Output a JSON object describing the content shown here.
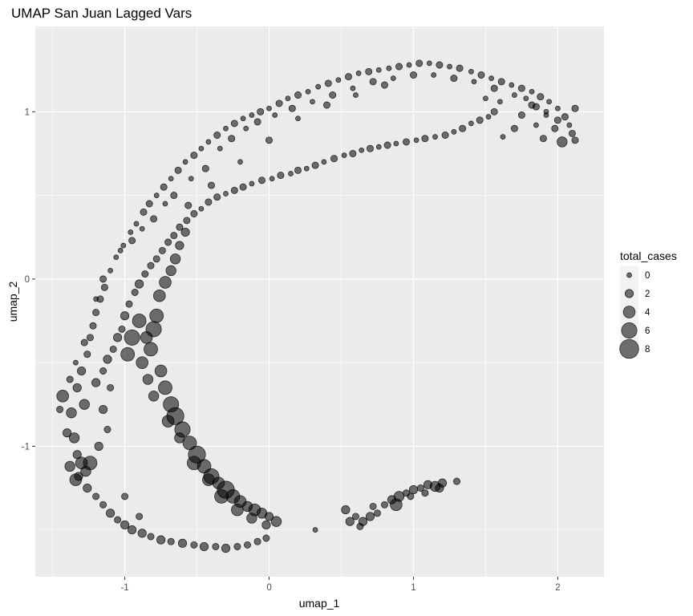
{
  "chart_data": {
    "type": "scatter",
    "title": "UMAP San Juan Lagged Vars",
    "xlabel": "umap_1",
    "ylabel": "umap_2",
    "xlim": [
      -1.62,
      2.32
    ],
    "ylim": [
      -1.78,
      1.51
    ],
    "x_ticks": [
      -1,
      0,
      1,
      2
    ],
    "y_ticks": [
      -1,
      0,
      1
    ],
    "x_tick_labels": [
      "-1",
      "0",
      "1",
      "2"
    ],
    "y_tick_labels": [
      "-1",
      "0",
      "1"
    ],
    "grid": true,
    "point_color": "#000000",
    "point_alpha": 0.55,
    "panel_color": "#ebebeb",
    "legend": {
      "title": "total_cases",
      "position": "right",
      "entries": [
        {
          "label": "0",
          "value": 0
        },
        {
          "label": "2",
          "value": 2
        },
        {
          "label": "4",
          "value": 4
        },
        {
          "label": "6",
          "value": 6
        },
        {
          "label": "8",
          "value": 8
        }
      ]
    },
    "points": [
      [
        -1.4,
        -0.92,
        2
      ],
      [
        -1.43,
        -0.7,
        4
      ],
      [
        -1.37,
        -0.8,
        3
      ],
      [
        -1.35,
        -0.95,
        3
      ],
      [
        -1.33,
        -1.05,
        2
      ],
      [
        -1.3,
        -1.1,
        4
      ],
      [
        -1.27,
        -1.15,
        3
      ],
      [
        -1.33,
        -0.65,
        2
      ],
      [
        -1.28,
        -0.75,
        3
      ],
      [
        -1.3,
        -0.55,
        2
      ],
      [
        -1.26,
        -0.45,
        1
      ],
      [
        -1.24,
        -0.35,
        1
      ],
      [
        -1.22,
        -0.28,
        1
      ],
      [
        -1.2,
        -0.2,
        1
      ],
      [
        -1.17,
        -0.12,
        1
      ],
      [
        -1.14,
        -0.05,
        1
      ],
      [
        -1.1,
        0.05,
        0
      ],
      [
        -1.06,
        0.13,
        0
      ],
      [
        -1.01,
        0.2,
        0
      ],
      [
        -0.96,
        0.28,
        0
      ],
      [
        -0.92,
        0.33,
        0
      ],
      [
        -0.87,
        0.4,
        1
      ],
      [
        -0.83,
        0.45,
        1
      ],
      [
        -0.78,
        0.5,
        0
      ],
      [
        -0.73,
        0.55,
        1
      ],
      [
        -0.68,
        0.6,
        0
      ],
      [
        -0.63,
        0.65,
        1
      ],
      [
        -0.58,
        0.7,
        0
      ],
      [
        -0.52,
        0.74,
        1
      ],
      [
        -0.47,
        0.78,
        0
      ],
      [
        -0.42,
        0.82,
        0
      ],
      [
        -0.36,
        0.86,
        1
      ],
      [
        -0.3,
        0.9,
        0
      ],
      [
        -0.24,
        0.93,
        1
      ],
      [
        -0.18,
        0.96,
        0
      ],
      [
        -0.12,
        0.98,
        0
      ],
      [
        -0.06,
        1.0,
        1
      ],
      [
        0.0,
        1.02,
        0
      ],
      [
        0.07,
        1.05,
        1
      ],
      [
        0.13,
        1.08,
        0
      ],
      [
        0.2,
        1.1,
        1
      ],
      [
        0.27,
        1.12,
        0
      ],
      [
        0.34,
        1.15,
        0
      ],
      [
        0.41,
        1.17,
        1
      ],
      [
        0.48,
        1.19,
        0
      ],
      [
        0.55,
        1.21,
        1
      ],
      [
        0.62,
        1.23,
        0
      ],
      [
        0.69,
        1.24,
        1
      ],
      [
        0.76,
        1.25,
        0
      ],
      [
        0.83,
        1.26,
        0
      ],
      [
        0.9,
        1.27,
        1
      ],
      [
        0.97,
        1.28,
        0
      ],
      [
        1.04,
        1.29,
        1
      ],
      [
        1.11,
        1.29,
        0
      ],
      [
        1.18,
        1.28,
        1
      ],
      [
        1.25,
        1.27,
        0
      ],
      [
        1.32,
        1.26,
        1
      ],
      [
        1.4,
        1.24,
        0
      ],
      [
        1.47,
        1.22,
        1
      ],
      [
        1.54,
        1.2,
        0
      ],
      [
        1.61,
        1.18,
        1
      ],
      [
        1.68,
        1.16,
        0
      ],
      [
        1.75,
        1.14,
        1
      ],
      [
        1.82,
        1.12,
        0
      ],
      [
        1.88,
        1.09,
        1
      ],
      [
        1.94,
        1.06,
        0
      ],
      [
        2.0,
        1.02,
        0
      ],
      [
        2.05,
        0.97,
        1
      ],
      [
        2.08,
        0.92,
        0
      ],
      [
        2.1,
        0.87,
        1
      ],
      [
        2.03,
        0.82,
        3
      ],
      [
        1.98,
        0.9,
        1
      ],
      [
        1.92,
        0.98,
        0
      ],
      [
        1.85,
        1.03,
        1
      ],
      [
        1.78,
        1.08,
        0
      ],
      [
        2.12,
        1.02,
        1
      ],
      [
        2.12,
        0.83,
        1
      ],
      [
        -1.2,
        -0.62,
        2
      ],
      [
        -1.15,
        -0.55,
        1
      ],
      [
        -1.12,
        -0.48,
        2
      ],
      [
        -1.08,
        -0.42,
        1
      ],
      [
        -1.05,
        -0.35,
        2
      ],
      [
        -1.02,
        -0.3,
        1
      ],
      [
        -1.0,
        -0.22,
        2
      ],
      [
        -0.97,
        -0.15,
        1
      ],
      [
        -0.93,
        -0.08,
        1
      ],
      [
        -0.9,
        -0.03,
        2
      ],
      [
        -0.86,
        0.03,
        1
      ],
      [
        -0.82,
        0.08,
        1
      ],
      [
        -0.78,
        0.12,
        1
      ],
      [
        -0.74,
        0.17,
        1
      ],
      [
        -0.7,
        0.22,
        1
      ],
      [
        -0.66,
        0.26,
        1
      ],
      [
        -0.62,
        0.31,
        1
      ],
      [
        -0.57,
        0.35,
        1
      ],
      [
        -0.52,
        0.39,
        1
      ],
      [
        -0.47,
        0.42,
        0
      ],
      [
        -0.42,
        0.46,
        1
      ],
      [
        -0.36,
        0.49,
        1
      ],
      [
        -0.3,
        0.51,
        0
      ],
      [
        -0.24,
        0.53,
        1
      ],
      [
        -0.18,
        0.55,
        1
      ],
      [
        -0.12,
        0.57,
        0
      ],
      [
        -0.05,
        0.59,
        1
      ],
      [
        0.02,
        0.6,
        0
      ],
      [
        0.08,
        0.62,
        1
      ],
      [
        0.15,
        0.63,
        0
      ],
      [
        0.2,
        0.65,
        1
      ],
      [
        0.26,
        0.66,
        0
      ],
      [
        0.32,
        0.68,
        1
      ],
      [
        0.38,
        0.7,
        0
      ],
      [
        0.45,
        0.72,
        1
      ],
      [
        0.52,
        0.74,
        0
      ],
      [
        0.58,
        0.75,
        1
      ],
      [
        0.64,
        0.77,
        0
      ],
      [
        0.7,
        0.78,
        1
      ],
      [
        0.76,
        0.79,
        0
      ],
      [
        0.82,
        0.8,
        1
      ],
      [
        0.88,
        0.81,
        0
      ],
      [
        0.95,
        0.82,
        1
      ],
      [
        1.02,
        0.83,
        0
      ],
      [
        1.08,
        0.84,
        1
      ],
      [
        1.15,
        0.85,
        0
      ],
      [
        1.22,
        0.86,
        1
      ],
      [
        1.28,
        0.88,
        0
      ],
      [
        1.34,
        0.9,
        1
      ],
      [
        1.4,
        0.93,
        0
      ],
      [
        1.46,
        0.95,
        1
      ],
      [
        1.52,
        0.97,
        0
      ],
      [
        1.56,
        1.0,
        1
      ],
      [
        1.5,
        1.08,
        0
      ],
      [
        -0.75,
        -0.55,
        4
      ],
      [
        -0.72,
        -0.65,
        5
      ],
      [
        -0.68,
        -0.75,
        6
      ],
      [
        -0.65,
        -0.82,
        7
      ],
      [
        -0.6,
        -0.9,
        6
      ],
      [
        -0.55,
        -0.98,
        5
      ],
      [
        -0.5,
        -1.05,
        7
      ],
      [
        -0.45,
        -1.12,
        5
      ],
      [
        -0.4,
        -1.18,
        6
      ],
      [
        -0.35,
        -1.22,
        4
      ],
      [
        -0.3,
        -1.26,
        7
      ],
      [
        -0.25,
        -1.3,
        5
      ],
      [
        -0.2,
        -1.33,
        4
      ],
      [
        -0.15,
        -1.36,
        3
      ],
      [
        -0.1,
        -1.38,
        4
      ],
      [
        -0.05,
        -1.4,
        3
      ],
      [
        0.0,
        -1.42,
        2
      ],
      [
        0.05,
        -1.45,
        3
      ],
      [
        -0.85,
        -0.35,
        4
      ],
      [
        -0.82,
        -0.42,
        5
      ],
      [
        -0.8,
        -0.3,
        6
      ],
      [
        -0.78,
        -0.22,
        5
      ],
      [
        -0.76,
        -0.1,
        4
      ],
      [
        -0.72,
        -0.02,
        4
      ],
      [
        -0.68,
        0.05,
        3
      ],
      [
        -0.65,
        0.12,
        3
      ],
      [
        -0.62,
        0.2,
        2
      ],
      [
        -0.58,
        0.28,
        2
      ],
      [
        -0.9,
        -0.25,
        5
      ],
      [
        -0.95,
        -0.35,
        6
      ],
      [
        -0.98,
        -0.45,
        5
      ],
      [
        -0.88,
        -0.5,
        4
      ],
      [
        -0.84,
        -0.6,
        3
      ],
      [
        -0.8,
        -0.7,
        3
      ],
      [
        -0.7,
        -0.85,
        4
      ],
      [
        -0.62,
        -0.95,
        3
      ],
      [
        -0.52,
        -1.1,
        5
      ],
      [
        -0.42,
        -1.2,
        4
      ],
      [
        -0.33,
        -1.3,
        5
      ],
      [
        -0.22,
        -1.38,
        4
      ],
      [
        -0.12,
        -1.43,
        3
      ],
      [
        -0.02,
        -1.47,
        2
      ],
      [
        -1.38,
        -1.12,
        3
      ],
      [
        -1.32,
        -1.18,
        2
      ],
      [
        -1.26,
        -1.25,
        2
      ],
      [
        -1.2,
        -1.3,
        1
      ],
      [
        -1.15,
        -1.35,
        1
      ],
      [
        -1.1,
        -1.4,
        2
      ],
      [
        -1.05,
        -1.44,
        1
      ],
      [
        -1.0,
        -1.47,
        2
      ],
      [
        -0.95,
        -1.5,
        2
      ],
      [
        -0.88,
        -1.52,
        2
      ],
      [
        -0.82,
        -1.54,
        1
      ],
      [
        -0.75,
        -1.56,
        2
      ],
      [
        -0.68,
        -1.57,
        1
      ],
      [
        -0.6,
        -1.58,
        2
      ],
      [
        -0.52,
        -1.59,
        1
      ],
      [
        -0.45,
        -1.6,
        2
      ],
      [
        -0.37,
        -1.6,
        1
      ],
      [
        -0.3,
        -1.61,
        2
      ],
      [
        -0.22,
        -1.6,
        1
      ],
      [
        -0.15,
        -1.59,
        1
      ],
      [
        -0.08,
        -1.57,
        1
      ],
      [
        -0.02,
        -1.55,
        1
      ],
      [
        -1.34,
        -1.2,
        4
      ],
      [
        -1.24,
        -1.1,
        5
      ],
      [
        -1.18,
        -1.0,
        2
      ],
      [
        -1.12,
        -0.9,
        1
      ],
      [
        -1.15,
        -0.78,
        2
      ],
      [
        -1.1,
        -0.65,
        1
      ],
      [
        -1.0,
        -1.3,
        1
      ],
      [
        -0.9,
        -1.42,
        1
      ],
      [
        0.53,
        -1.38,
        2
      ],
      [
        0.56,
        -1.45,
        2
      ],
      [
        0.6,
        -1.42,
        1
      ],
      [
        0.65,
        -1.45,
        2
      ],
      [
        0.7,
        -1.42,
        2
      ],
      [
        0.75,
        -1.4,
        1
      ],
      [
        0.8,
        -1.35,
        1
      ],
      [
        0.85,
        -1.32,
        2
      ],
      [
        0.9,
        -1.3,
        3
      ],
      [
        0.95,
        -1.28,
        1
      ],
      [
        1.0,
        -1.26,
        2
      ],
      [
        1.05,
        -1.25,
        1
      ],
      [
        1.1,
        -1.23,
        2
      ],
      [
        1.15,
        -1.24,
        3
      ],
      [
        1.2,
        -1.22,
        2
      ],
      [
        1.3,
        -1.21,
        1
      ],
      [
        0.88,
        -1.35,
        4
      ],
      [
        1.08,
        -1.28,
        1
      ],
      [
        0.32,
        -1.5,
        0
      ],
      [
        0.63,
        -1.48,
        1
      ],
      [
        0.72,
        -1.36,
        1
      ],
      [
        0.98,
        -1.3,
        1
      ],
      [
        1.18,
        -1.25,
        2
      ],
      [
        -1.45,
        -0.78,
        1
      ],
      [
        -1.38,
        -0.6,
        1
      ],
      [
        -1.34,
        -0.5,
        0
      ],
      [
        -1.28,
        -0.38,
        1
      ],
      [
        -1.2,
        -0.12,
        0
      ],
      [
        -1.15,
        0.0,
        1
      ],
      [
        -1.03,
        0.17,
        0
      ],
      [
        -0.95,
        0.23,
        1
      ],
      [
        -0.88,
        0.3,
        0
      ],
      [
        -0.8,
        0.36,
        1
      ],
      [
        -0.72,
        0.45,
        0
      ],
      [
        -0.66,
        0.5,
        1
      ],
      [
        -0.54,
        0.6,
        0
      ],
      [
        -0.44,
        0.66,
        1
      ],
      [
        -0.34,
        0.78,
        0
      ],
      [
        -0.26,
        0.84,
        1
      ],
      [
        -0.16,
        0.9,
        0
      ],
      [
        -0.08,
        0.94,
        1
      ],
      [
        0.04,
        0.98,
        0
      ],
      [
        0.16,
        1.02,
        1
      ],
      [
        0.3,
        1.06,
        0
      ],
      [
        0.44,
        1.1,
        1
      ],
      [
        0.58,
        1.14,
        0
      ],
      [
        0.72,
        1.18,
        1
      ],
      [
        0.86,
        1.2,
        0
      ],
      [
        1.0,
        1.22,
        1
      ],
      [
        1.14,
        1.22,
        0
      ],
      [
        1.28,
        1.2,
        1
      ],
      [
        1.42,
        1.18,
        0
      ],
      [
        1.56,
        1.14,
        1
      ],
      [
        1.7,
        1.1,
        0
      ],
      [
        1.82,
        1.04,
        1
      ],
      [
        1.92,
        1.0,
        0
      ],
      [
        2.0,
        0.95,
        1
      ],
      [
        -0.56,
        0.44,
        1
      ],
      [
        -0.4,
        0.56,
        1
      ],
      [
        -0.2,
        0.7,
        0
      ],
      [
        0.0,
        0.83,
        1
      ],
      [
        0.2,
        0.96,
        0
      ],
      [
        0.4,
        1.04,
        1
      ],
      [
        0.6,
        1.1,
        0
      ],
      [
        0.8,
        1.16,
        1
      ],
      [
        1.6,
        1.06,
        0
      ],
      [
        1.75,
        0.98,
        1
      ],
      [
        1.85,
        0.92,
        0
      ],
      [
        1.7,
        0.9,
        1
      ],
      [
        1.62,
        0.85,
        0
      ],
      [
        1.9,
        0.84,
        1
      ]
    ]
  }
}
